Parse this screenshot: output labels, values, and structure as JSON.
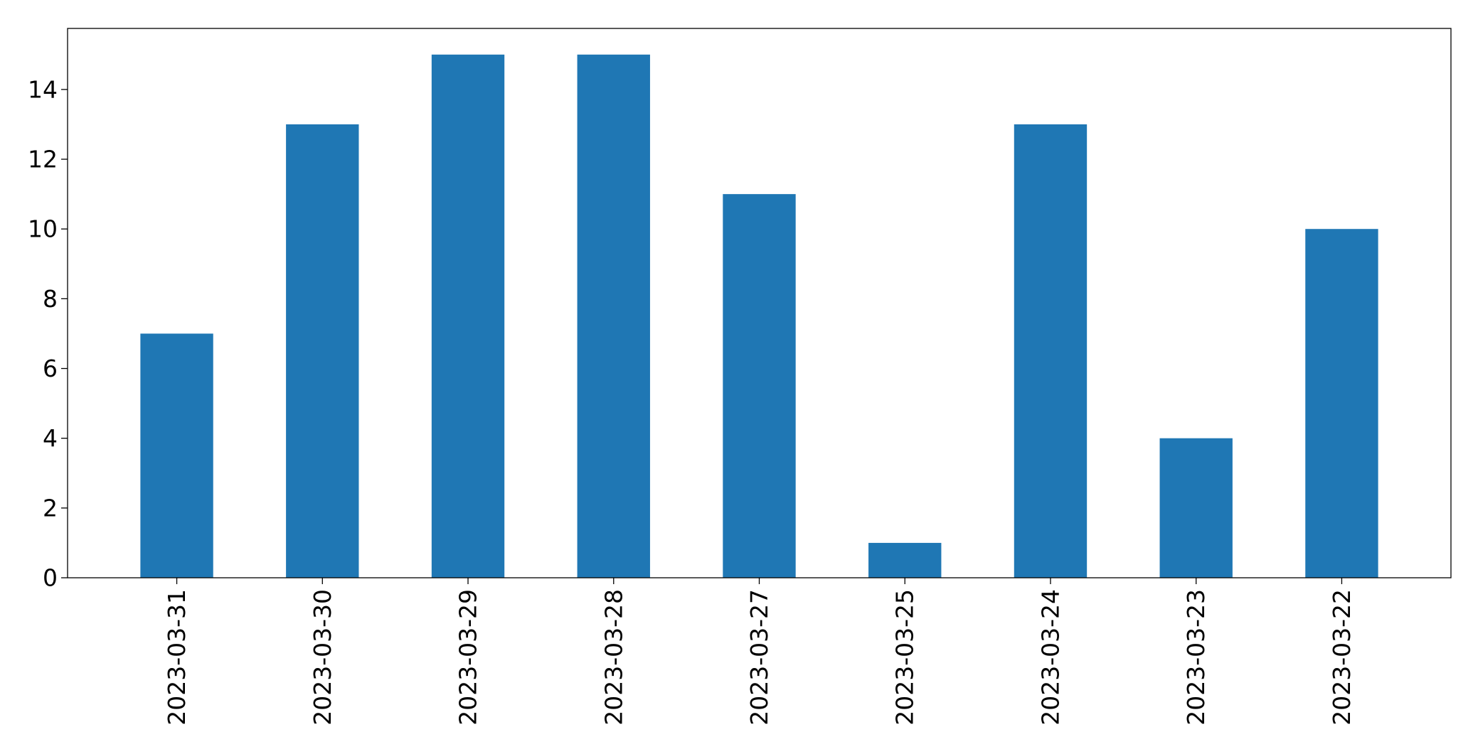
{
  "chart_data": {
    "type": "bar",
    "categories": [
      "2023-03-31",
      "2023-03-30",
      "2023-03-29",
      "2023-03-28",
      "2023-03-27",
      "2023-03-25",
      "2023-03-24",
      "2023-03-23",
      "2023-03-22"
    ],
    "values": [
      7,
      13,
      15,
      15,
      11,
      1,
      13,
      4,
      10
    ],
    "title": "",
    "xlabel": "",
    "ylabel": "",
    "ylim": [
      0,
      15.75
    ],
    "yticks": [
      "0",
      "2",
      "4",
      "6",
      "8",
      "10",
      "12",
      "14"
    ],
    "grid": false,
    "legend": "none",
    "bar_color": "#1f77b4"
  }
}
